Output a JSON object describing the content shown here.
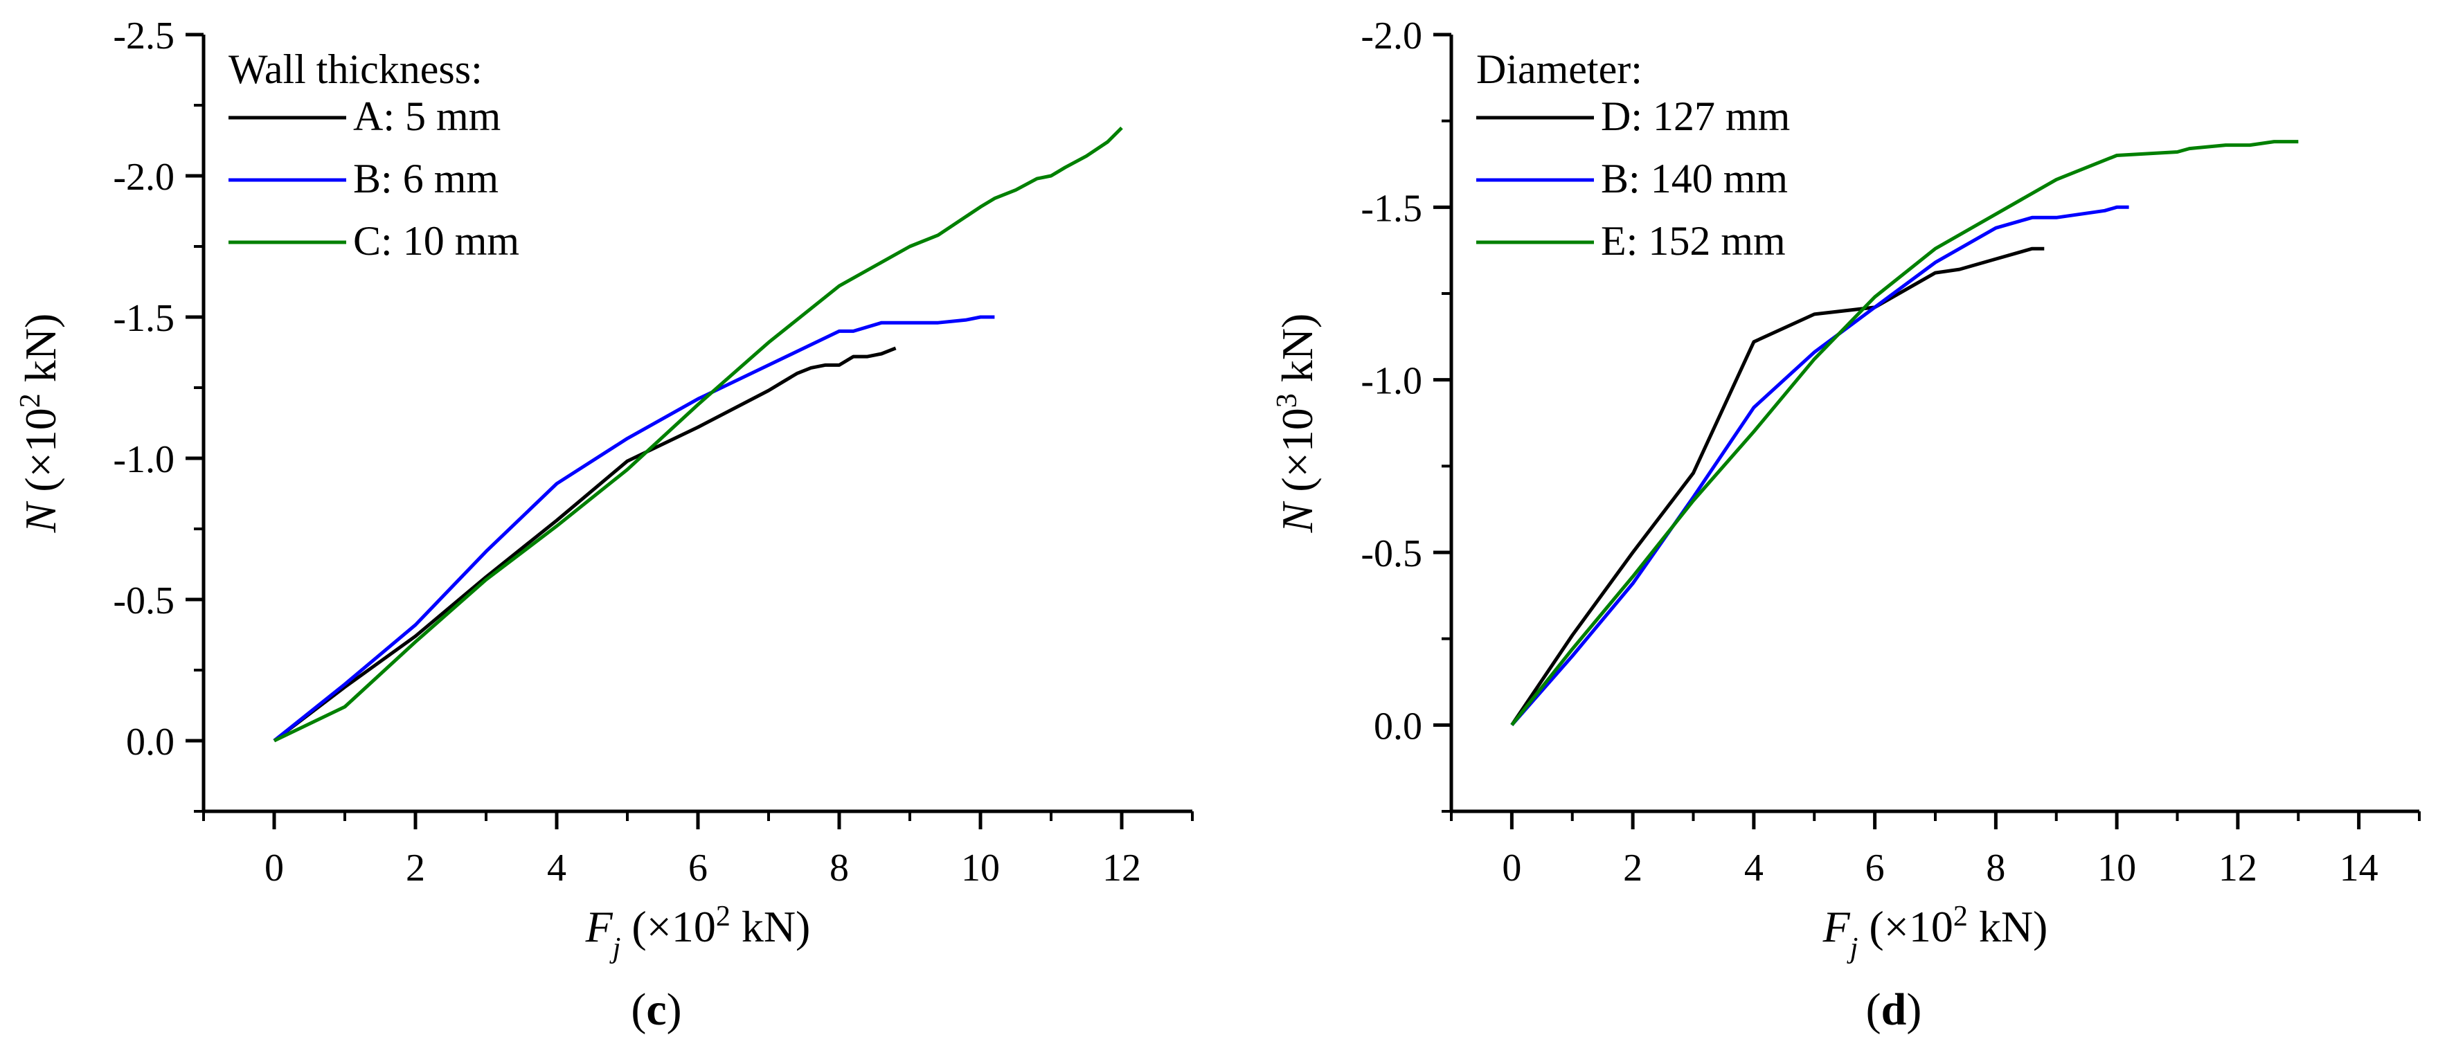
{
  "colors": {
    "black": "#000000",
    "blue": "#0000ff",
    "green": "#008000"
  },
  "chart_data": [
    {
      "type": "line",
      "panel_label": "c",
      "legend_title": "Wall thickness:",
      "xlabel": {
        "main": "F",
        "sub": "j",
        "pre": " (×10",
        "sup": "2",
        "post": " kN)"
      },
      "ylabel": {
        "main": "N",
        "pre": " (×10",
        "sup": "2",
        "post": " kN)"
      },
      "xlim": [
        -1,
        13
      ],
      "ylim": [
        0.25,
        -2.5
      ],
      "xticks": [
        0,
        2,
        4,
        6,
        8,
        10,
        12
      ],
      "xtick_labels": [
        "0",
        "2",
        "4",
        "6",
        "8",
        "10",
        "12"
      ],
      "yticks": [
        0,
        -0.5,
        -1,
        -1.5,
        -2,
        -2.5
      ],
      "ytick_labels": [
        "0.0",
        "-0.5",
        "-1.0",
        "-1.5",
        "-2.0",
        "-2.5"
      ],
      "series": [
        {
          "name": "A: 5 mm",
          "color": "#000000",
          "x": [
            0,
            1,
            2,
            3,
            4,
            5,
            6,
            7,
            7.2,
            7.4,
            7.6,
            7.8,
            8,
            8.2,
            8.4,
            8.6,
            8.8
          ],
          "y": [
            0,
            -0.19,
            -0.37,
            -0.58,
            -0.78,
            -0.99,
            -1.11,
            -1.24,
            -1.27,
            -1.3,
            -1.32,
            -1.33,
            -1.33,
            -1.36,
            -1.36,
            -1.37,
            -1.39
          ]
        },
        {
          "name": "B: 6 mm",
          "color": "#0000ff",
          "x": [
            0,
            1,
            2,
            3,
            4,
            5,
            6,
            7,
            8,
            8.2,
            8.6,
            9,
            9.4,
            9.8,
            10,
            10.2
          ],
          "y": [
            0,
            -0.2,
            -0.41,
            -0.67,
            -0.91,
            -1.07,
            -1.21,
            -1.33,
            -1.45,
            -1.45,
            -1.48,
            -1.48,
            -1.48,
            -1.49,
            -1.5,
            -1.5
          ]
        },
        {
          "name": "C: 10 mm",
          "color": "#008000",
          "x": [
            0,
            1,
            2,
            3,
            4,
            5,
            6,
            7,
            8,
            9,
            9.4,
            10,
            10.2,
            10.5,
            10.8,
            11,
            11.2,
            11.5,
            11.8,
            12
          ],
          "y": [
            0,
            -0.12,
            -0.35,
            -0.57,
            -0.76,
            -0.96,
            -1.19,
            -1.41,
            -1.61,
            -1.75,
            -1.79,
            -1.89,
            -1.92,
            -1.95,
            -1.99,
            -2.0,
            -2.03,
            -2.07,
            -2.12,
            -2.17
          ]
        }
      ]
    },
    {
      "type": "line",
      "panel_label": "d",
      "legend_title": "Diameter:",
      "xlabel": {
        "main": "F",
        "sub": "j",
        "pre": " (×10",
        "sup": "2",
        "post": " kN)"
      },
      "ylabel": {
        "main": "N",
        "pre": " (×10",
        "sup": "3",
        "post": " kN)"
      },
      "xlim": [
        -1,
        15
      ],
      "ylim": [
        0.25,
        -2.0
      ],
      "xticks": [
        0,
        2,
        4,
        6,
        8,
        10,
        12,
        14
      ],
      "xtick_labels": [
        "0",
        "2",
        "4",
        "6",
        "8",
        "10",
        "12",
        "14"
      ],
      "yticks": [
        0,
        -0.5,
        -1,
        -1.5,
        -2
      ],
      "ytick_labels": [
        "0.0",
        "-0.5",
        "-1.0",
        "-1.5",
        "-2.0"
      ],
      "series": [
        {
          "name": "D: 127 mm",
          "color": "#000000",
          "x": [
            0,
            1,
            2,
            3,
            4,
            5,
            6,
            7,
            7.4,
            7.6,
            8,
            8.4,
            8.6,
            8.8
          ],
          "y": [
            0,
            -0.26,
            -0.5,
            -0.73,
            -1.11,
            -1.19,
            -1.21,
            -1.31,
            -1.32,
            -1.33,
            -1.35,
            -1.37,
            -1.38,
            -1.38
          ]
        },
        {
          "name": "B: 140 mm",
          "color": "#0000ff",
          "x": [
            0,
            1,
            2,
            3,
            4,
            5,
            6,
            7,
            8,
            8.4,
            8.6,
            9,
            9.4,
            9.8,
            10,
            10.2
          ],
          "y": [
            0,
            -0.2,
            -0.41,
            -0.66,
            -0.92,
            -1.08,
            -1.21,
            -1.34,
            -1.44,
            -1.46,
            -1.47,
            -1.47,
            -1.48,
            -1.49,
            -1.5,
            -1.5
          ]
        },
        {
          "name": "E: 152 mm",
          "color": "#008000",
          "x": [
            0,
            1,
            2,
            3,
            4,
            5,
            6,
            7,
            8,
            9,
            10,
            11,
            11.2,
            11.8,
            12.2,
            12.6,
            13
          ],
          "y": [
            0,
            -0.22,
            -0.43,
            -0.65,
            -0.85,
            -1.06,
            -1.24,
            -1.38,
            -1.48,
            -1.58,
            -1.65,
            -1.66,
            -1.67,
            -1.68,
            -1.68,
            -1.69,
            -1.69
          ]
        }
      ]
    }
  ]
}
